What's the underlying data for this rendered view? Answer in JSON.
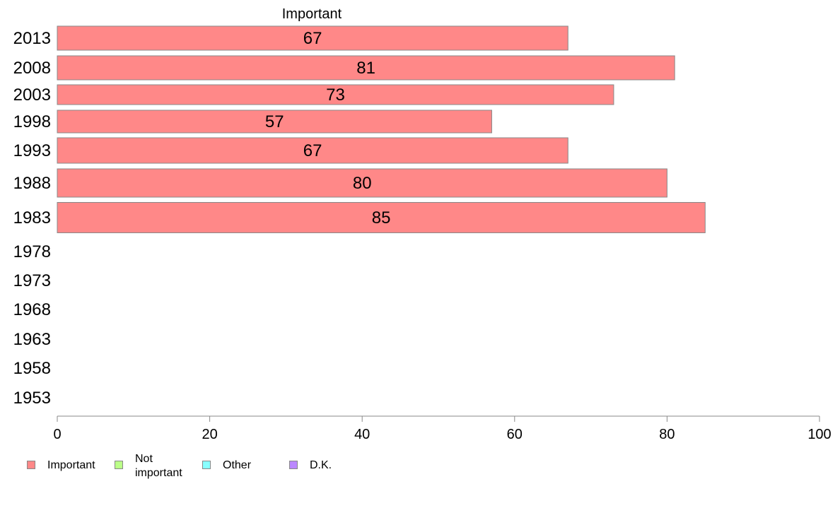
{
  "chart_data": {
    "type": "bar",
    "orientation": "horizontal",
    "title": "Important",
    "categories": [
      "2013",
      "2008",
      "2003",
      "1998",
      "1993",
      "1988",
      "1983",
      "1978",
      "1973",
      "1968",
      "1963",
      "1958",
      "1953"
    ],
    "series": [
      {
        "name": "Important",
        "values": [
          67,
          81,
          73,
          57,
          67,
          80,
          85,
          null,
          null,
          null,
          null,
          null,
          null
        ],
        "color": "#ff8888"
      }
    ],
    "xlim": [
      0,
      100
    ],
    "xticks": [
      0,
      20,
      40,
      60,
      80,
      100
    ],
    "grid": false,
    "legend_position": "bottom-left"
  },
  "legend": [
    {
      "label": "Important",
      "color": "#ff8888"
    },
    {
      "label": "Not important",
      "color": "#bbff88"
    },
    {
      "label": "Other",
      "color": "#88ffff"
    },
    {
      "label": "D.K.",
      "color": "#bb88ff"
    }
  ]
}
